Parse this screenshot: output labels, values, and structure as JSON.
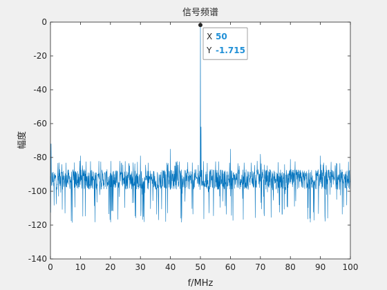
{
  "chart_data": {
    "type": "line",
    "title": "信号频谱",
    "xlabel": "f/MHz",
    "ylabel": "幅度",
    "xlim": [
      0,
      100
    ],
    "ylim": [
      -140,
      0
    ],
    "xticks": [
      "0",
      "10",
      "20",
      "30",
      "40",
      "50",
      "60",
      "70",
      "80",
      "90",
      "100"
    ],
    "yticks": [
      "0",
      "-20",
      "-40",
      "-60",
      "-80",
      "-100",
      "-120",
      "-140"
    ],
    "grid": false,
    "series": [
      {
        "color": "#0072BD",
        "noise_floor_mean": -93,
        "noise_band": [
          -100,
          -85
        ],
        "dips_down_to": -128,
        "peaks": [
          {
            "x": 50,
            "y": -1.715
          },
          {
            "x": 50.2,
            "y": -62
          },
          {
            "x": 40,
            "y": -75
          },
          {
            "x": 60,
            "y": -75
          },
          {
            "x": 10,
            "y": -79
          },
          {
            "x": 30,
            "y": -79
          },
          {
            "x": 70,
            "y": -78
          },
          {
            "x": 90,
            "y": -79
          },
          {
            "x": 0.2,
            "y": -72
          },
          {
            "x": 80,
            "y": -81
          }
        ]
      }
    ],
    "datatip": {
      "x_label": "X",
      "x_value": "50",
      "y_label": "Y",
      "y_value": "-1.715"
    }
  }
}
